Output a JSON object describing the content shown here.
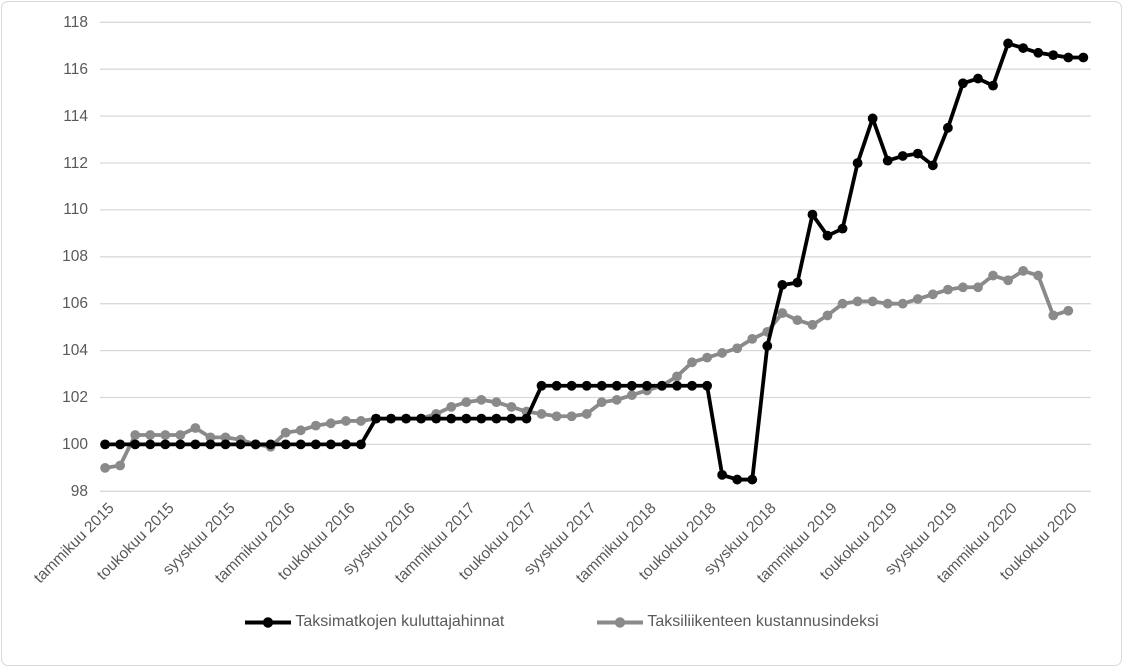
{
  "chart": {
    "legend": {
      "position": "bottom",
      "items": [
        {
          "label": "Taksimatkojen kuluttajahinnat",
          "color": "#000000"
        },
        {
          "label": "Taksiliikenteen kustannusindeksi",
          "color": "#8a8a8a"
        }
      ]
    }
  },
  "chart_data": {
    "type": "line",
    "title": "",
    "xlabel": "",
    "ylabel": "",
    "grid": true,
    "legend_position": "bottom",
    "x_axis": {
      "unit": "month",
      "start": "tammikuu 2015",
      "step_months": 1,
      "tick_every_n_points": 4,
      "tick_labels": [
        "tammikuu 2015",
        "toukokuu 2015",
        "syyskuu 2015",
        "tammikuu 2016",
        "toukokuu 2016",
        "syyskuu 2016",
        "tammikuu 2017",
        "toukokuu 2017",
        "syyskuu 2017",
        "tammikuu 2018",
        "toukokuu 2018",
        "syyskuu 2018",
        "tammikuu 2019",
        "toukokuu 2019",
        "syyskuu 2019",
        "tammikuu 2020",
        "toukokuu 2020"
      ]
    },
    "y_axis": {
      "min": 98,
      "max": 118,
      "tick_step": 2,
      "ticks": [
        98,
        100,
        102,
        104,
        106,
        108,
        110,
        112,
        114,
        116,
        118
      ]
    },
    "series": [
      {
        "name": "Taksiliikenteen kustannusindeksi",
        "color": "#8a8a8a",
        "values": [
          99.0,
          99.1,
          100.4,
          100.4,
          100.4,
          100.4,
          100.7,
          100.3,
          100.3,
          100.2,
          100.0,
          99.9,
          100.5,
          100.6,
          100.8,
          100.9,
          101.0,
          101.0,
          101.1,
          101.1,
          101.1,
          101.1,
          101.3,
          101.6,
          101.8,
          101.9,
          101.8,
          101.6,
          101.4,
          101.3,
          101.2,
          101.2,
          101.3,
          101.8,
          101.9,
          102.1,
          102.3,
          102.5,
          102.9,
          103.5,
          103.7,
          103.9,
          104.1,
          104.5,
          104.8,
          105.6,
          105.3,
          105.1,
          105.5,
          106.0,
          106.1,
          106.1,
          106.0,
          106.0,
          106.2,
          106.4,
          106.6,
          106.7,
          106.7,
          107.2,
          107.0,
          107.4,
          107.2,
          105.5,
          105.7
        ]
      },
      {
        "name": "Taksimatkojen kuluttajahinnat",
        "color": "#000000",
        "values": [
          100.0,
          100.0,
          100.0,
          100.0,
          100.0,
          100.0,
          100.0,
          100.0,
          100.0,
          100.0,
          100.0,
          100.0,
          100.0,
          100.0,
          100.0,
          100.0,
          100.0,
          100.0,
          101.1,
          101.1,
          101.1,
          101.1,
          101.1,
          101.1,
          101.1,
          101.1,
          101.1,
          101.1,
          101.1,
          102.5,
          102.5,
          102.5,
          102.5,
          102.5,
          102.5,
          102.5,
          102.5,
          102.5,
          102.5,
          102.5,
          102.5,
          98.7,
          98.5,
          98.5,
          104.2,
          106.8,
          106.9,
          109.8,
          108.9,
          109.2,
          112.0,
          113.9,
          112.1,
          112.3,
          112.4,
          111.9,
          113.5,
          115.4,
          115.6,
          115.3,
          117.1,
          116.9,
          116.7,
          116.6,
          116.5,
          116.5
        ]
      }
    ]
  },
  "colors": {
    "background": "#ffffff",
    "border": "#d9d9d9",
    "gridline": "#d9d9d9",
    "axis_text": "#595959",
    "series_black": "#000000",
    "series_gray": "#8a8a8a"
  }
}
